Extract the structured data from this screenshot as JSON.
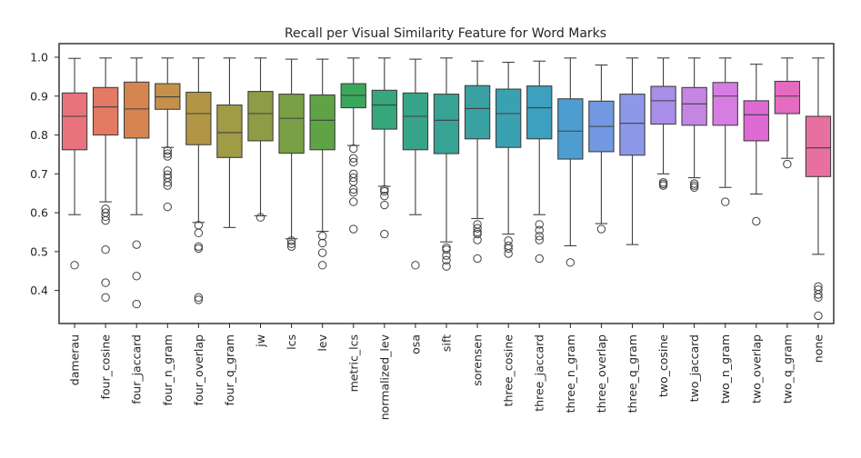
{
  "chart_data": {
    "type": "box",
    "title": "Recall per Visual Similarity Feature for Word Marks",
    "xlabel": "",
    "ylabel": "",
    "ylim": [
      0.315,
      1.035
    ],
    "yticks": [
      "0.4",
      "0.5",
      "0.6",
      "0.7",
      "0.8",
      "0.9",
      "1.0"
    ],
    "grid": false,
    "legend": "none",
    "categories": [
      "damerau",
      "four_cosine",
      "four_jaccard",
      "four_n_gram",
      "four_overlap",
      "four_q_gram",
      "jw",
      "lcs",
      "lev",
      "metric_lcs",
      "normalized_lev",
      "osa",
      "sift",
      "sorensen",
      "three_cosine",
      "three_jaccard",
      "three_n_gram",
      "three_overlap",
      "three_q_gram",
      "two_cosine",
      "two_jaccard",
      "two_n_gram",
      "two_overlap",
      "two_q_gram",
      "none"
    ],
    "colors": [
      "#e8737c",
      "#e47a63",
      "#d68550",
      "#c59049",
      "#b29646",
      "#a09b45",
      "#8e9c45",
      "#7aa046",
      "#5fa347",
      "#3aa85a",
      "#35a77a",
      "#37a489",
      "#38a295",
      "#39a1a2",
      "#3aa1b1",
      "#3ca0be",
      "#4e9dd0",
      "#7198e0",
      "#8d98e8",
      "#a88ee8",
      "#c585e3",
      "#d67de1",
      "#df6ad4",
      "#e56bc1",
      "#e770a0"
    ],
    "series": [
      {
        "name": "damerau",
        "q1": 0.762,
        "median": 0.848,
        "q3": 0.908,
        "whisker_low": 0.595,
        "whisker_high": 0.997,
        "outliers": [
          0.465
        ]
      },
      {
        "name": "four_cosine",
        "q1": 0.8,
        "median": 0.872,
        "q3": 0.922,
        "whisker_low": 0.628,
        "whisker_high": 0.998,
        "outliers": [
          0.61,
          0.6,
          0.59,
          0.58,
          0.505,
          0.42,
          0.382
        ]
      },
      {
        "name": "four_jaccard",
        "q1": 0.792,
        "median": 0.867,
        "q3": 0.936,
        "whisker_low": 0.595,
        "whisker_high": 0.998,
        "outliers": [
          0.518,
          0.437,
          0.365
        ]
      },
      {
        "name": "four_n_gram",
        "q1": 0.866,
        "median": 0.898,
        "q3": 0.932,
        "whisker_low": 0.768,
        "whisker_high": 0.998,
        "outliers": [
          0.76,
          0.752,
          0.745,
          0.708,
          0.698,
          0.69,
          0.678,
          0.67,
          0.615
        ]
      },
      {
        "name": "four_overlap",
        "q1": 0.775,
        "median": 0.855,
        "q3": 0.91,
        "whisker_low": 0.575,
        "whisker_high": 0.998,
        "outliers": [
          0.568,
          0.548,
          0.513,
          0.508,
          0.382,
          0.376
        ]
      },
      {
        "name": "four_q_gram",
        "q1": 0.742,
        "median": 0.806,
        "q3": 0.877,
        "whisker_low": 0.562,
        "whisker_high": 0.998,
        "outliers": []
      },
      {
        "name": "jw",
        "q1": 0.785,
        "median": 0.855,
        "q3": 0.912,
        "whisker_low": 0.592,
        "whisker_high": 0.998,
        "outliers": [
          0.588
        ]
      },
      {
        "name": "lcs",
        "q1": 0.753,
        "median": 0.843,
        "q3": 0.905,
        "whisker_low": 0.533,
        "whisker_high": 0.995,
        "outliers": [
          0.528,
          0.52,
          0.513
        ]
      },
      {
        "name": "lev",
        "q1": 0.762,
        "median": 0.838,
        "q3": 0.903,
        "whisker_low": 0.552,
        "whisker_high": 0.995,
        "outliers": [
          0.54,
          0.522,
          0.497,
          0.465
        ]
      },
      {
        "name": "metric_lcs",
        "q1": 0.87,
        "median": 0.902,
        "q3": 0.932,
        "whisker_low": 0.773,
        "whisker_high": 0.998,
        "outliers": [
          0.765,
          0.74,
          0.73,
          0.7,
          0.69,
          0.68,
          0.66,
          0.652,
          0.628,
          0.558
        ]
      },
      {
        "name": "normalized_lev",
        "q1": 0.815,
        "median": 0.877,
        "q3": 0.915,
        "whisker_low": 0.668,
        "whisker_high": 0.998,
        "outliers": [
          0.66,
          0.655,
          0.643,
          0.62,
          0.545
        ]
      },
      {
        "name": "osa",
        "q1": 0.762,
        "median": 0.848,
        "q3": 0.908,
        "whisker_low": 0.595,
        "whisker_high": 0.995,
        "outliers": [
          0.465
        ]
      },
      {
        "name": "sift",
        "q1": 0.752,
        "median": 0.838,
        "q3": 0.905,
        "whisker_low": 0.525,
        "whisker_high": 0.998,
        "outliers": [
          0.51,
          0.505,
          0.49,
          0.478,
          0.462
        ]
      },
      {
        "name": "sorensen",
        "q1": 0.79,
        "median": 0.868,
        "q3": 0.927,
        "whisker_low": 0.585,
        "whisker_high": 0.99,
        "outliers": [
          0.57,
          0.56,
          0.55,
          0.545,
          0.53,
          0.482
        ]
      },
      {
        "name": "three_cosine",
        "q1": 0.768,
        "median": 0.855,
        "q3": 0.918,
        "whisker_low": 0.545,
        "whisker_high": 0.987,
        "outliers": [
          0.528,
          0.515,
          0.508,
          0.495
        ]
      },
      {
        "name": "three_jaccard",
        "q1": 0.79,
        "median": 0.87,
        "q3": 0.926,
        "whisker_low": 0.595,
        "whisker_high": 0.99,
        "outliers": [
          0.57,
          0.555,
          0.54,
          0.53,
          0.482
        ]
      },
      {
        "name": "three_n_gram",
        "q1": 0.738,
        "median": 0.81,
        "q3": 0.893,
        "whisker_low": 0.515,
        "whisker_high": 0.998,
        "outliers": [
          0.472
        ]
      },
      {
        "name": "three_overlap",
        "q1": 0.757,
        "median": 0.822,
        "q3": 0.887,
        "whisker_low": 0.572,
        "whisker_high": 0.98,
        "outliers": [
          0.558
        ]
      },
      {
        "name": "three_q_gram",
        "q1": 0.748,
        "median": 0.83,
        "q3": 0.905,
        "whisker_low": 0.518,
        "whisker_high": 0.998,
        "outliers": []
      },
      {
        "name": "two_cosine",
        "q1": 0.828,
        "median": 0.888,
        "q3": 0.925,
        "whisker_low": 0.7,
        "whisker_high": 0.998,
        "outliers": [
          0.678,
          0.674,
          0.67
        ]
      },
      {
        "name": "two_jaccard",
        "q1": 0.825,
        "median": 0.88,
        "q3": 0.922,
        "whisker_low": 0.69,
        "whisker_high": 0.998,
        "outliers": [
          0.675,
          0.67,
          0.665
        ]
      },
      {
        "name": "two_n_gram",
        "q1": 0.825,
        "median": 0.9,
        "q3": 0.935,
        "whisker_low": 0.665,
        "whisker_high": 0.998,
        "outliers": [
          0.628
        ]
      },
      {
        "name": "two_overlap",
        "q1": 0.785,
        "median": 0.852,
        "q3": 0.888,
        "whisker_low": 0.648,
        "whisker_high": 0.982,
        "outliers": [
          0.578
        ]
      },
      {
        "name": "two_q_gram",
        "q1": 0.855,
        "median": 0.9,
        "q3": 0.938,
        "whisker_low": 0.74,
        "whisker_high": 0.998,
        "outliers": [
          0.725
        ]
      },
      {
        "name": "none",
        "q1": 0.693,
        "median": 0.767,
        "q3": 0.848,
        "whisker_low": 0.493,
        "whisker_high": 0.998,
        "outliers": [
          0.41,
          0.402,
          0.39,
          0.382,
          0.335
        ]
      }
    ]
  }
}
